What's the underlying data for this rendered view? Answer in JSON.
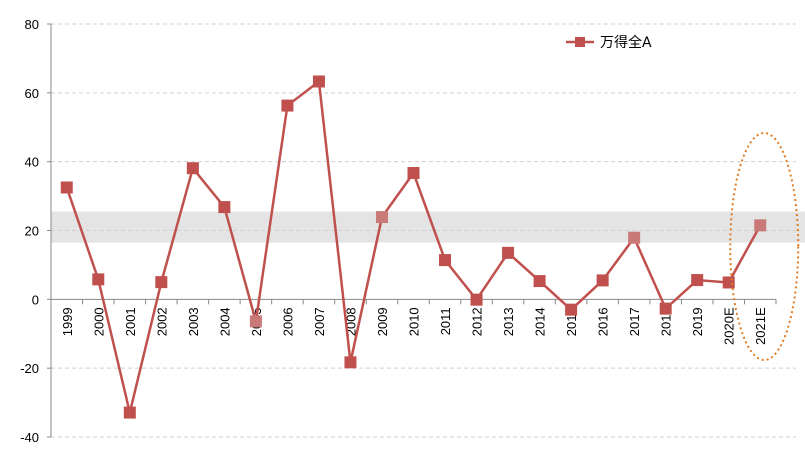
{
  "chart_data": {
    "type": "line",
    "categories": [
      "1999",
      "2000",
      "2001",
      "2002",
      "2003",
      "2004",
      "2005",
      "2006",
      "2007",
      "2008",
      "2009",
      "2010",
      "2011",
      "2012",
      "2013",
      "2014",
      "2015",
      "2016",
      "2017",
      "2018",
      "2019",
      "2020E",
      "2021E"
    ],
    "series": [
      {
        "name": "万得全A",
        "values": [
          32.5,
          5.8,
          -32.9,
          5.0,
          38.1,
          26.8,
          -6.4,
          56.3,
          63.3,
          -18.3,
          23.9,
          36.7,
          11.4,
          -0.1,
          13.5,
          5.3,
          -3.0,
          5.5,
          17.9,
          -2.7,
          5.6,
          4.9,
          21.5
        ],
        "color": "#c0504d"
      }
    ],
    "highlighted_points": [
      "2005",
      "2009",
      "2017",
      "2021E"
    ],
    "highlight_point_color": "#c97a78",
    "ylim": [
      -40,
      80
    ],
    "yticks": [
      -40,
      -20,
      0,
      20,
      40,
      60,
      80
    ],
    "ytick_labels": [
      "-40",
      "-20",
      "0",
      "20",
      "40",
      "60",
      "80"
    ],
    "band_range": [
      16.5,
      25.5
    ],
    "band_color": "#e4e4e4",
    "highlight_ellipse_on": "2021E",
    "highlight_ellipse_color": "#e07b1f",
    "grid": true,
    "legend_position": "top-right",
    "xlabel": "",
    "ylabel": "",
    "title": ""
  }
}
